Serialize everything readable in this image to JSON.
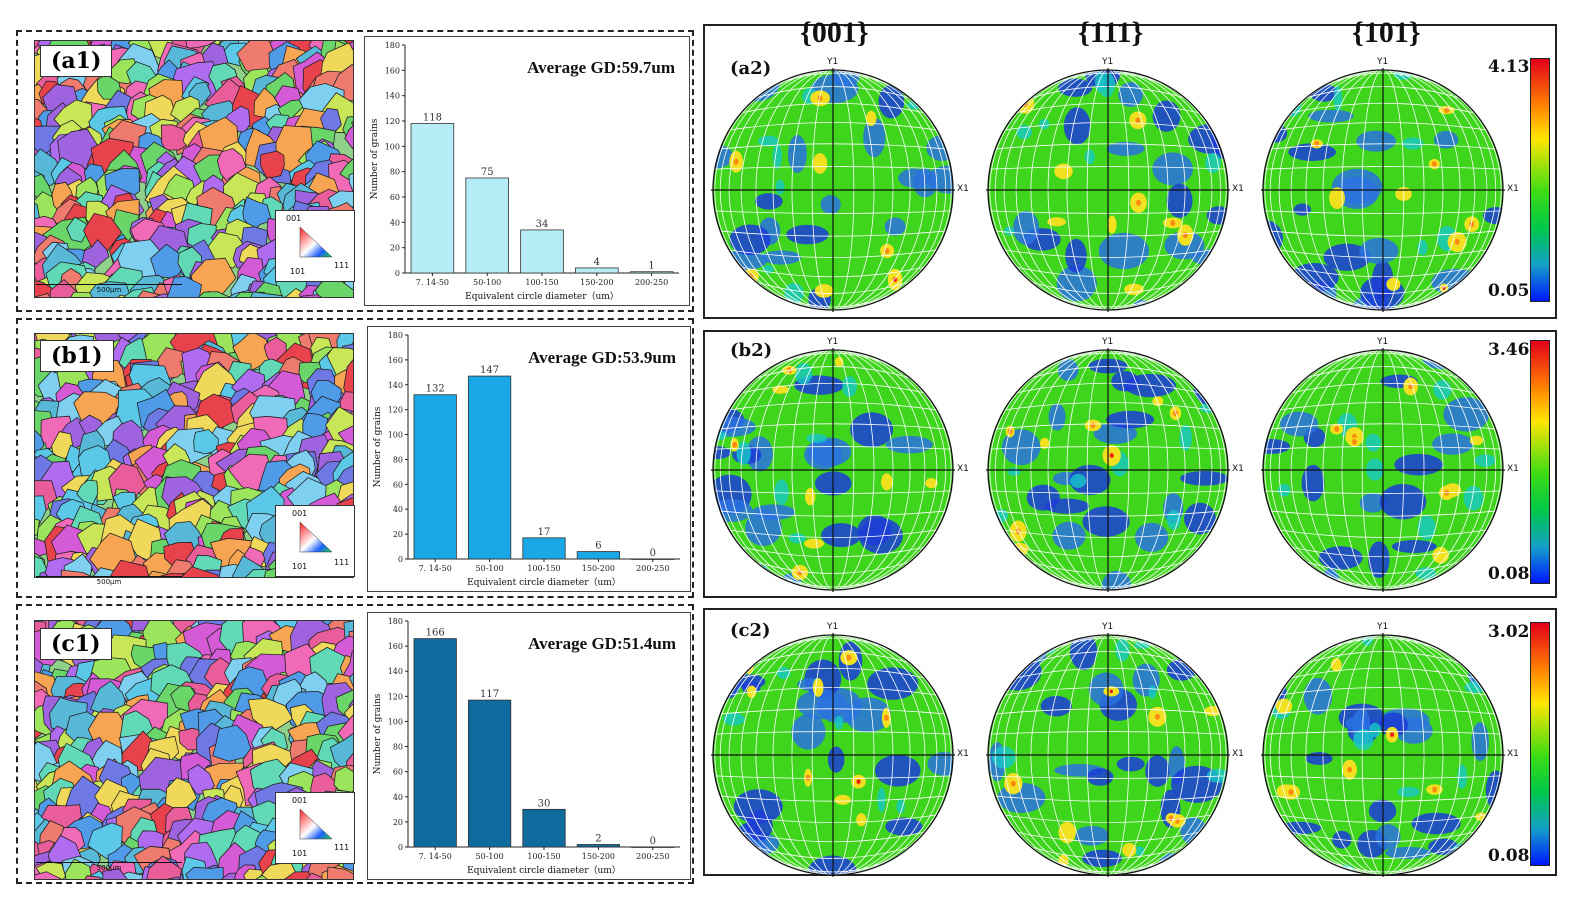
{
  "colors": {
    "bar_a": "#b5ecf6",
    "bar_b": "#1aa7e6",
    "bar_c": "#0f6a9e"
  },
  "chart_data": [
    {
      "type": "bar",
      "id": "a1_hist",
      "panel_label": "(a1)",
      "title": "Average GD:59.7um",
      "categories": [
        "7. 14-50",
        "50-100",
        "100-150",
        "150-200",
        "200-250"
      ],
      "values": [
        118,
        75,
        34,
        4,
        1
      ],
      "data_labels": [
        "118",
        "75",
        "34",
        "4",
        "1"
      ],
      "xlabel": "Equivalent circle diameter（um）",
      "ylabel": "Number of grains",
      "ylim": [
        0,
        180
      ],
      "yticks": [
        0,
        20,
        40,
        60,
        80,
        100,
        120,
        140,
        160,
        180
      ]
    },
    {
      "type": "bar",
      "id": "b1_hist",
      "panel_label": "(b1)",
      "title": "Average GD:53.9um",
      "categories": [
        "7. 14-50",
        "50-100",
        "100-150",
        "150-200",
        "200-250"
      ],
      "values": [
        132,
        147,
        17,
        6,
        0
      ],
      "data_labels": [
        "132",
        "147",
        "17",
        "6",
        "0"
      ],
      "xlabel": "Equivalent circle diameter（um）",
      "ylabel": "Number of grains",
      "ylim": [
        0,
        180
      ],
      "yticks": [
        0,
        20,
        40,
        60,
        80,
        100,
        120,
        140,
        160,
        180
      ]
    },
    {
      "type": "bar",
      "id": "c1_hist",
      "panel_label": "(c1)",
      "title": "Average GD:51.4um",
      "categories": [
        "7. 14-50",
        "50-100",
        "100-150",
        "150-200",
        "200-250"
      ],
      "values": [
        166,
        117,
        30,
        2,
        0
      ],
      "data_labels": [
        "166",
        "117",
        "30",
        "2",
        "0"
      ],
      "xlabel": "Equivalent circle diameter（um）",
      "ylabel": "Number of grains",
      "ylim": [
        0,
        180
      ],
      "yticks": [
        0,
        20,
        40,
        60,
        80,
        100,
        120,
        140,
        160,
        180
      ]
    }
  ],
  "ebsd": {
    "legend_001": "001",
    "legend_101": "101",
    "legend_111": "111",
    "scale_label": "500μm"
  },
  "pole_figures": {
    "columns": [
      "{001}",
      "{111}",
      "{101}"
    ],
    "axis_y": "Y1",
    "axis_x": "X1",
    "rows": [
      {
        "label": "(a2)",
        "max": "4.13",
        "min": "0.05"
      },
      {
        "label": "(b2)",
        "max": "3.46",
        "min": "0.08"
      },
      {
        "label": "(c2)",
        "max": "3.02",
        "min": "0.08"
      }
    ]
  }
}
